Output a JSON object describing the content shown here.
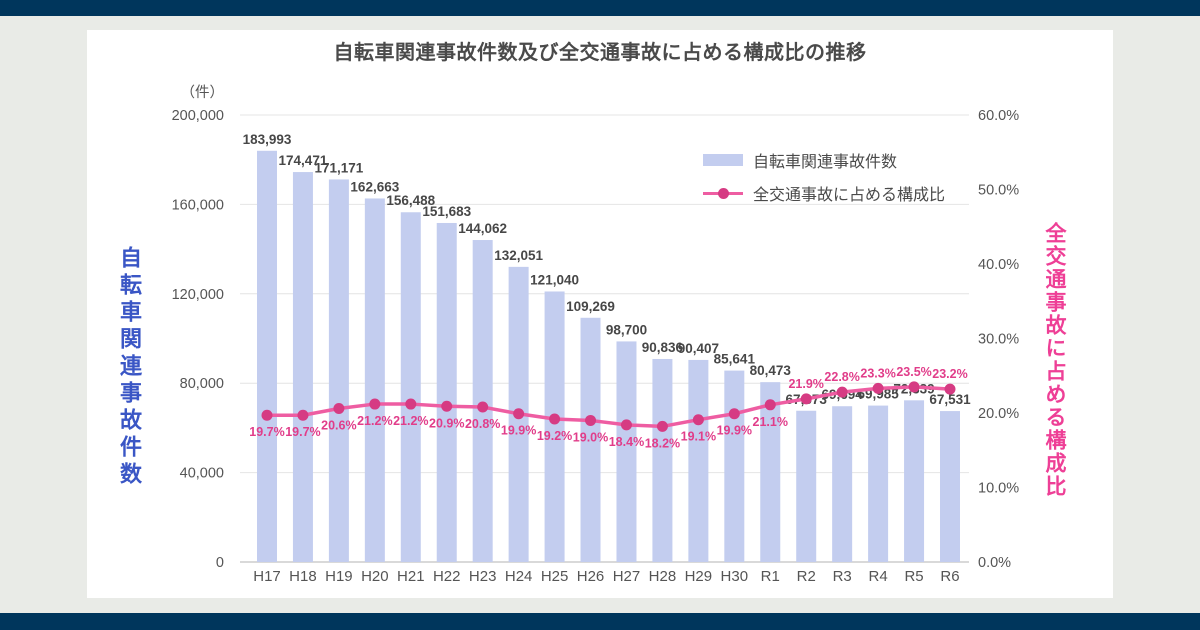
{
  "page": {
    "background_color": "#e9ebe7",
    "top_band_color": "#00365c",
    "bottom_band_color": "#00365c",
    "card_color": "#ffffff"
  },
  "chart": {
    "title": "自転車関連事故件数及び全交通事故に占める構成比の推移",
    "left_axis_title": "自転車関連事故件数",
    "right_axis_title": "全交通事故に占める構成比",
    "legend": [
      {
        "label": "自転車関連事故件数",
        "swatch": "bar-swatch"
      },
      {
        "label": "全交通事故に占める構成比",
        "swatch": "line-swatch"
      }
    ]
  },
  "colors": {
    "bar": "#c3cdef",
    "line": "#ee5da2",
    "marker": "#d63b83",
    "percent_label": "#e13d8a",
    "value_label": "#474747",
    "tick_label": "#555555",
    "title": "#4a4a4a",
    "left_axis_title": "#3a56c5",
    "right_axis_title": "#ee3f96",
    "grid": "#e4e4e4",
    "baseline": "#c2c2c2",
    "band": "#00365c",
    "page_bg": "#e9ebe7"
  },
  "chart_data": {
    "type": "combo (bar + line, dual axis)",
    "title": "自転車関連事故件数及び全交通事故に占める構成比の推移",
    "categories": [
      "H17",
      "H18",
      "H19",
      "H20",
      "H21",
      "H22",
      "H23",
      "H24",
      "H25",
      "H26",
      "H27",
      "H28",
      "H29",
      "H30",
      "R1",
      "R2",
      "R3",
      "R4",
      "R5",
      "R6"
    ],
    "series": [
      {
        "name": "自転車関連事故件数",
        "type": "bar",
        "yaxis": "left",
        "values": [
          183993,
          174471,
          171171,
          162663,
          156488,
          151683,
          144062,
          132051,
          121040,
          109269,
          98700,
          90836,
          90407,
          85641,
          80473,
          67673,
          69694,
          69985,
          72339,
          67531
        ],
        "labels": [
          "183,993",
          "174,471",
          "171,171",
          "162,663",
          "156,488",
          "151,683",
          "144,062",
          "132,051",
          "121,040",
          "109,269",
          "98,700",
          "90,836",
          "90,407",
          "85,641",
          "80,473",
          "67,673",
          "69,694",
          "69,985",
          "72,339",
          "67,531"
        ]
      },
      {
        "name": "全交通事故に占める構成比",
        "type": "line",
        "yaxis": "right",
        "values": [
          19.7,
          19.7,
          20.6,
          21.2,
          21.2,
          20.9,
          20.8,
          19.9,
          19.2,
          19.0,
          18.4,
          18.2,
          19.1,
          19.9,
          21.1,
          21.9,
          22.8,
          23.3,
          23.5,
          23.2
        ],
        "labels": [
          "19.7%",
          "19.7%",
          "20.6%",
          "21.2%",
          "21.2%",
          "20.9%",
          "20.8%",
          "19.9%",
          "19.2%",
          "19.0%",
          "18.4%",
          "18.2%",
          "19.1%",
          "19.9%",
          "21.1%",
          "21.9%",
          "22.8%",
          "23.3%",
          "23.5%",
          "23.2%"
        ]
      }
    ],
    "left_axis": {
      "unit": "（件）",
      "min": 0,
      "max": 200000,
      "tick_step": 40000,
      "tick_values": [
        0,
        40000,
        80000,
        120000,
        160000,
        200000
      ],
      "tick_labels": [
        "0",
        "40,000",
        "80,000",
        "120,000",
        "160,000",
        "200,000"
      ]
    },
    "right_axis": {
      "min": 0,
      "max": 60,
      "tick_step": 10,
      "tick_values": [
        0,
        10,
        20,
        30,
        40,
        50,
        60
      ],
      "tick_labels": [
        "0.0%",
        "10.0%",
        "20.0%",
        "30.0%",
        "40.0%",
        "50.0%",
        "60.0%"
      ]
    },
    "grid": true,
    "legend_position": "inside-top-right"
  }
}
